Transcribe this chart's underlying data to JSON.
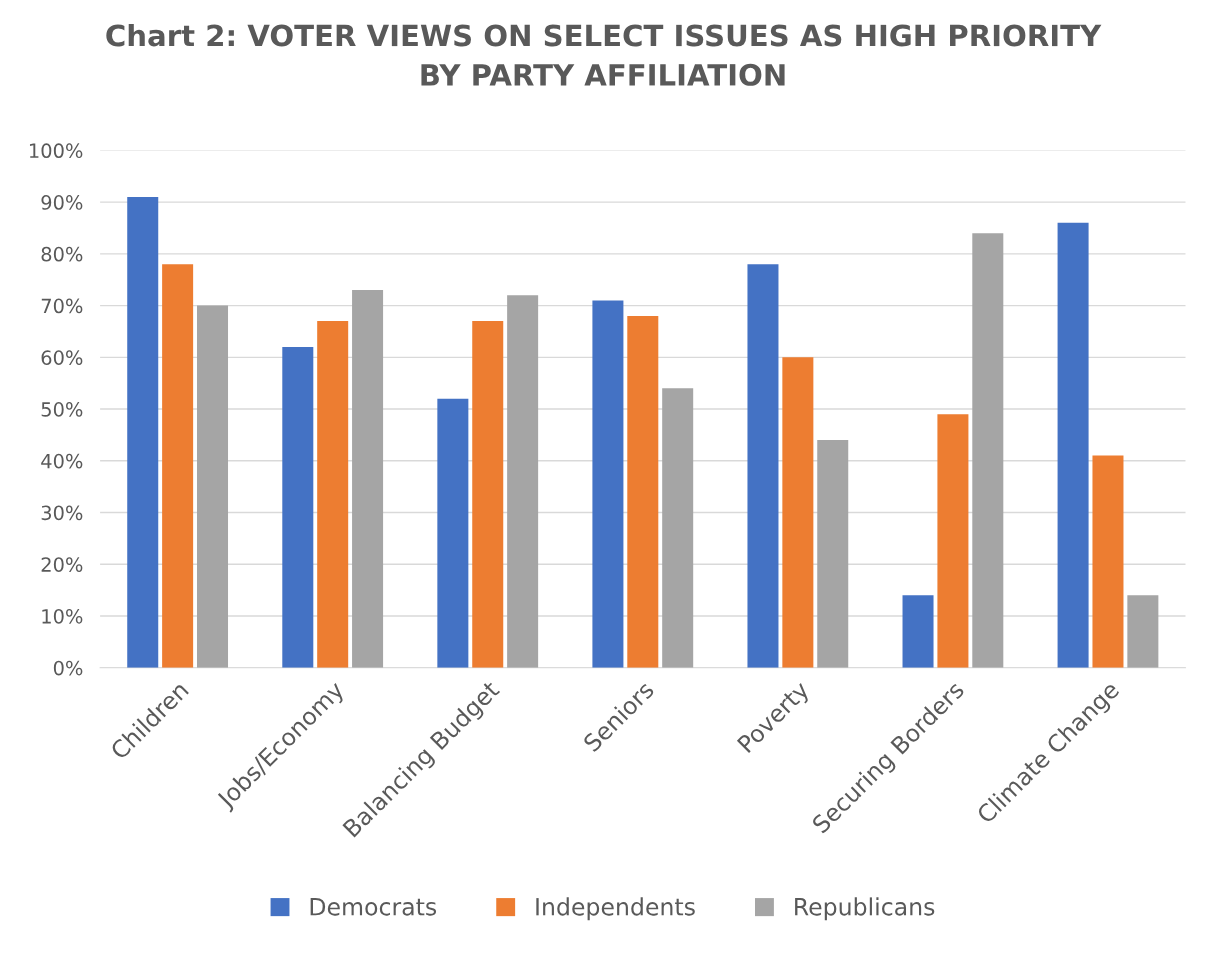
{
  "chart_data": {
    "type": "bar",
    "title": "Chart 2: VOTER VIEWS ON SELECT ISSUES AS HIGH PRIORITY\nBY PARTY AFFILIATION",
    "categories": [
      "Children",
      "Jobs/Economy",
      "Balancing Budget",
      "Seniors",
      "Poverty",
      "Securing Borders",
      "Climate Change"
    ],
    "series": [
      {
        "name": "Democrats",
        "color": "#4472c4",
        "values": [
          91,
          62,
          52,
          71,
          78,
          14,
          86
        ]
      },
      {
        "name": "Independents",
        "color": "#ed7d31",
        "values": [
          78,
          67,
          67,
          68,
          60,
          49,
          41
        ]
      },
      {
        "name": "Republicans",
        "color": "#a5a5a5",
        "values": [
          70,
          73,
          72,
          54,
          44,
          84,
          14
        ]
      }
    ],
    "ylim": [
      0,
      100
    ],
    "yticks": [
      {
        "value": 0,
        "label": "0%"
      },
      {
        "value": 10,
        "label": "10%"
      },
      {
        "value": 20,
        "label": "20%"
      },
      {
        "value": 30,
        "label": "30%"
      },
      {
        "value": 40,
        "label": "40%"
      },
      {
        "value": 50,
        "label": "50%"
      },
      {
        "value": 60,
        "label": "60%"
      },
      {
        "value": 70,
        "label": "70%"
      },
      {
        "value": 80,
        "label": "80%"
      },
      {
        "value": 90,
        "label": "90%"
      },
      {
        "value": 100,
        "label": "100%"
      }
    ],
    "grid": "y",
    "legend": "bottom"
  }
}
